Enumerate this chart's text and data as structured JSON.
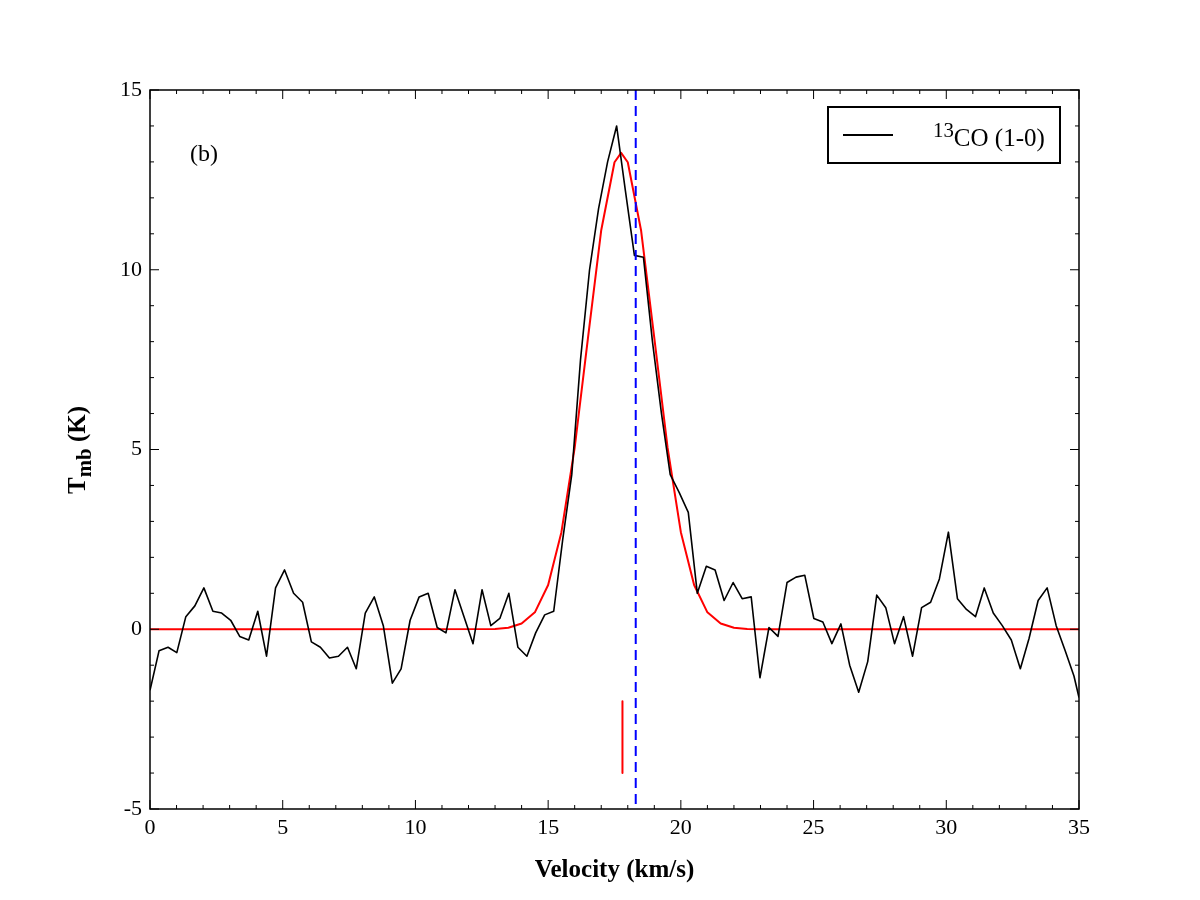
{
  "chart_data": {
    "type": "line",
    "xlabel": "Velocity (km/s)",
    "ylabel": "T$_{mb}$ (K)",
    "annotations": [
      "(b)"
    ],
    "xlim": [
      0,
      35
    ],
    "ylim": [
      -5,
      15
    ],
    "xticks": [
      0,
      5,
      10,
      15,
      20,
      25,
      30,
      35
    ],
    "yticks": [
      -5,
      0,
      5,
      10,
      15
    ],
    "legend": "top right",
    "marker": "none",
    "ref_lines": [
      {
        "axis": "x",
        "value": 18.3,
        "color": "#0000ff",
        "line_style": "dashed"
      }
    ],
    "series": [
      {
        "name": "$^{13}$CO (1-0)",
        "color": "#000000",
        "x": [
          0,
          0.34,
          0.68,
          1.01,
          1.35,
          1.69,
          2.03,
          2.37,
          2.7,
          3.04,
          3.38,
          3.72,
          4.06,
          4.39,
          4.73,
          5.07,
          5.41,
          5.75,
          6.08,
          6.42,
          6.76,
          7.1,
          7.44,
          7.77,
          8.11,
          8.45,
          8.79,
          9.13,
          9.46,
          9.8,
          10.14,
          10.48,
          10.82,
          11.15,
          11.49,
          11.83,
          12.17,
          12.51,
          12.84,
          13.18,
          13.52,
          13.86,
          14.2,
          14.53,
          14.87,
          15.21,
          15.55,
          15.89,
          16.22,
          16.56,
          16.9,
          17.24,
          17.58,
          17.91,
          18.25,
          18.59,
          18.93,
          19.27,
          19.6,
          19.94,
          20.28,
          20.62,
          20.96,
          21.29,
          21.63,
          21.97,
          22.31,
          22.65,
          22.98,
          23.32,
          23.66,
          24.0,
          24.34,
          24.67,
          25.01,
          25.35,
          25.69,
          26.03,
          26.36,
          26.7,
          27.04,
          27.38,
          27.72,
          28.05,
          28.39,
          28.73,
          29.07,
          29.41,
          29.74,
          30.08,
          30.42,
          30.76,
          31.1,
          31.43,
          31.77,
          32.11,
          32.45,
          32.79,
          33.12,
          33.46,
          33.8,
          34.14,
          34.48,
          34.81,
          35
        ],
        "values": [
          -1.7,
          -0.6,
          -0.5,
          -0.65,
          0.35,
          0.65,
          1.15,
          0.5,
          0.45,
          0.25,
          -0.2,
          -0.3,
          0.5,
          -0.75,
          1.15,
          1.65,
          1.0,
          0.75,
          -0.35,
          -0.5,
          -0.8,
          -0.75,
          -0.5,
          -1.1,
          0.45,
          0.9,
          0.1,
          -1.5,
          -1.1,
          0.25,
          0.9,
          1.0,
          0.05,
          -0.1,
          1.1,
          0.35,
          -0.4,
          1.1,
          0.1,
          0.3,
          1.0,
          -0.5,
          -0.75,
          -0.1,
          0.4,
          0.5,
          2.5,
          4.3,
          7.5,
          10.0,
          11.7,
          13.0,
          14.0,
          12.2,
          10.4,
          10.35,
          8.0,
          6.0,
          4.3,
          3.8,
          3.25,
          1.0,
          1.75,
          1.65,
          0.8,
          1.3,
          0.85,
          0.9,
          -1.35,
          0.05,
          -0.2,
          1.3,
          1.45,
          1.5,
          0.3,
          0.2,
          -0.4,
          0.15,
          -1.0,
          -1.75,
          -0.9,
          0.95,
          0.6,
          -0.4,
          0.35,
          -0.75,
          0.6,
          0.75,
          1.4,
          2.7,
          0.85,
          0.55,
          0.35,
          1.15,
          0.45,
          0.1,
          -0.3,
          -1.1,
          -0.25,
          0.8,
          1.15,
          0.1,
          -0.6,
          -1.3,
          -1.9
        ]
      },
      {
        "color": "#ff0000",
        "x": [
          0,
          13,
          13.5,
          14,
          14.5,
          15,
          15.5,
          16,
          16.5,
          17,
          17.5,
          17.75,
          18,
          18.5,
          19,
          19.5,
          20,
          20.5,
          21,
          21.5,
          22,
          22.5,
          23,
          35
        ],
        "values": [
          0,
          0.01,
          0.04,
          0.16,
          0.47,
          1.23,
          2.7,
          5.05,
          8.1,
          11.1,
          12.99,
          13.25,
          12.99,
          11.1,
          8.1,
          5.05,
          2.7,
          1.23,
          0.47,
          0.16,
          0.04,
          0.01,
          0,
          0
        ]
      },
      {
        "type": "line",
        "color": "#ff0000",
        "x": [
          17.8,
          17.8
        ],
        "values": [
          -2,
          -4
        ]
      }
    ]
  }
}
